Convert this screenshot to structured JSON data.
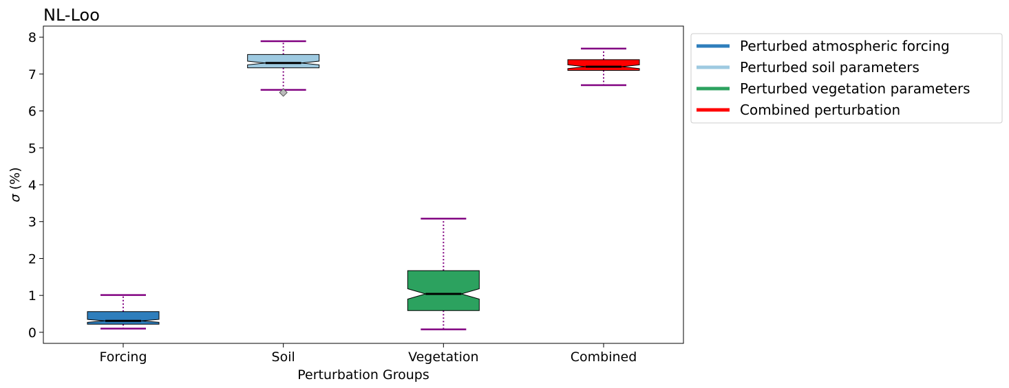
{
  "chart_data": {
    "type": "box",
    "title": "NL-Loo",
    "xlabel": "Perturbation Groups",
    "ylabel_symbol": "σ",
    "ylabel_unit": "(%)",
    "ylim": [
      -0.3,
      8.3
    ],
    "yticks": [
      0,
      1,
      2,
      3,
      4,
      5,
      6,
      7,
      8
    ],
    "ytick_labels": [
      "0",
      "1",
      "2",
      "3",
      "4",
      "5",
      "6",
      "7",
      "8"
    ],
    "categories": [
      "Forcing",
      "Soil",
      "Vegetation",
      "Combined"
    ],
    "notched": true,
    "whisker_color": "#800080",
    "median_color": "#000000",
    "boxes": [
      {
        "category": "Forcing",
        "color": "#2e7ebc",
        "whisker_low": 0.1,
        "q1": 0.22,
        "median": 0.31,
        "notch_low": 0.27,
        "notch_high": 0.35,
        "q3": 0.56,
        "whisker_high": 1.01,
        "outliers": []
      },
      {
        "category": "Soil",
        "color": "#9ecae1",
        "whisker_low": 6.57,
        "q1": 7.17,
        "median": 7.3,
        "notch_low": 7.25,
        "notch_high": 7.35,
        "q3": 7.53,
        "whisker_high": 7.89,
        "outliers": [
          6.5
        ]
      },
      {
        "category": "Vegetation",
        "color": "#2ca25f",
        "whisker_low": 0.08,
        "q1": 0.59,
        "median": 1.04,
        "notch_low": 0.9,
        "notch_high": 1.18,
        "q3": 1.67,
        "whisker_high": 3.08,
        "outliers": []
      },
      {
        "category": "Combined",
        "color": "#ff0000",
        "whisker_low": 6.7,
        "q1": 7.1,
        "median": 7.2,
        "notch_low": 7.15,
        "notch_high": 7.25,
        "q3": 7.39,
        "whisker_high": 7.69,
        "outliers": []
      }
    ],
    "legend": {
      "position": "outside-top-right",
      "entries": [
        {
          "label": "Perturbed atmospheric forcing",
          "color": "#2e7ebc"
        },
        {
          "label": "Perturbed soil parameters",
          "color": "#9ecae1"
        },
        {
          "label": "Perturbed vegetation parameters",
          "color": "#2ca25f"
        },
        {
          "label": "Combined perturbation",
          "color": "#ff0000"
        }
      ]
    }
  }
}
